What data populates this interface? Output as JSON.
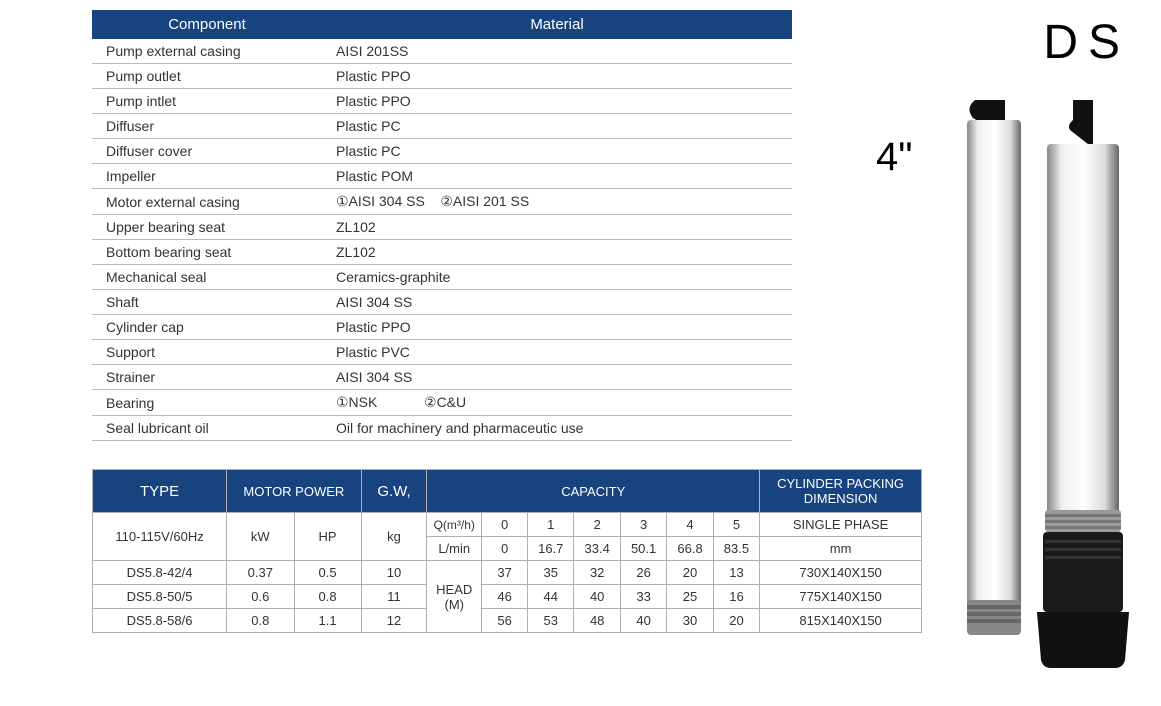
{
  "materials": {
    "headers": [
      "Component",
      "Material"
    ],
    "rows": [
      [
        "Pump external casing",
        "AISI 201SS"
      ],
      [
        "Pump outlet",
        "Plastic PPO"
      ],
      [
        "Pump intlet",
        "Plastic PPO"
      ],
      [
        "Diffuser",
        "Plastic PC"
      ],
      [
        "Diffuser cover",
        "Plastic PC"
      ],
      [
        "Impeller",
        "Plastic POM"
      ],
      [
        "Motor external casing",
        "①AISI 304 SS    ②AISI 201 SS"
      ],
      [
        "Upper bearing seat",
        "ZL102"
      ],
      [
        "Bottom bearing seat",
        "ZL102"
      ],
      [
        "Mechanical seal",
        "Ceramics-graphite"
      ],
      [
        "Shaft",
        "AISI 304 SS"
      ],
      [
        "Cylinder cap",
        "Plastic PPO"
      ],
      [
        "Support",
        "Plastic PVC"
      ],
      [
        "Strainer",
        "AISI 304 SS"
      ],
      [
        "Bearing",
        "①NSK            ②C&U"
      ],
      [
        "Seal lubricant oil",
        "Oil for machinery and pharmaceutic use"
      ]
    ]
  },
  "specs": {
    "headers": {
      "type": "TYPE",
      "motor_power": "MOTOR POWER",
      "gw": "G.W,",
      "capacity": "CAPACITY",
      "packing": "CYLINDER PACKING DIMENSION"
    },
    "sub": {
      "voltage": "110-115V/60Hz",
      "kw": "kW",
      "hp": "HP",
      "kg": "kg",
      "q": "Q(m³/h)",
      "q_vals": [
        "0",
        "1",
        "2",
        "3",
        "4",
        "5"
      ],
      "lmin": "L/min",
      "lmin_vals": [
        "0",
        "16.7",
        "33.4",
        "50.1",
        "66.8",
        "83.5"
      ],
      "phase": "SINGLE PHASE",
      "mm": "mm",
      "head": "HEAD (M)"
    },
    "rows": [
      {
        "type": "DS5.8-42/4",
        "kw": "0.37",
        "hp": "0.5",
        "kg": "10",
        "caps": [
          "37",
          "35",
          "32",
          "26",
          "20",
          "13"
        ],
        "pack": "730X140X150"
      },
      {
        "type": "DS5.8-50/5",
        "kw": "0.6",
        "hp": "0.8",
        "kg": "11",
        "caps": [
          "46",
          "44",
          "40",
          "33",
          "25",
          "16"
        ],
        "pack": "775X140X150"
      },
      {
        "type": "DS5.8-58/6",
        "kw": "0.8",
        "hp": "1.1",
        "kg": "12",
        "caps": [
          "56",
          "53",
          "48",
          "40",
          "30",
          "20"
        ],
        "pack": "815X140X150"
      }
    ]
  },
  "labels": {
    "ds": "DS",
    "size": "4\""
  },
  "style": {
    "header_bg": "#17437f",
    "header_color": "#ffffff",
    "border_color": "#b0b0b0",
    "text_color": "#333333"
  }
}
